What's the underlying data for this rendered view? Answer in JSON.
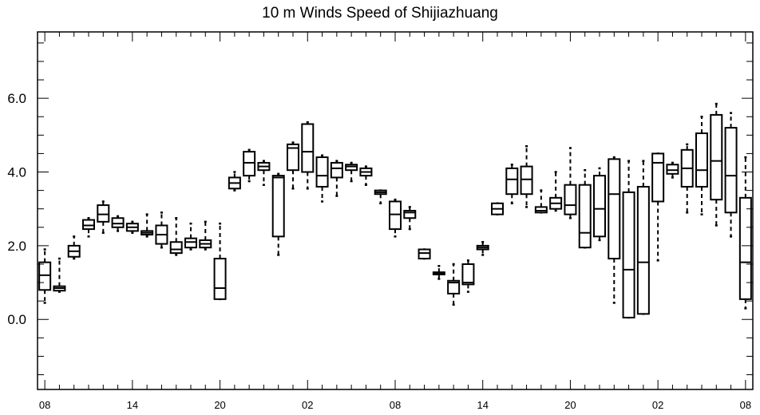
{
  "chart_data": {
    "type": "boxplot",
    "title": "10 m Winds Speed of Shijiazhuang",
    "xlabel": "",
    "ylabel": "",
    "ylim": [
      -1.9,
      7.8
    ],
    "xlim": [
      0.5,
      49.5
    ],
    "yticks": [
      0.0,
      2.0,
      4.0,
      6.0
    ],
    "ytick_labels": [
      "0.0",
      "2.0",
      "4.0",
      "6.0"
    ],
    "y_minor_step": 0.5,
    "xticks": [
      1,
      7,
      13,
      19,
      25,
      31,
      37,
      43,
      49
    ],
    "xtick_labels": [
      "08",
      "14",
      "20",
      "02",
      "08",
      "14",
      "20",
      "02",
      "08"
    ],
    "x_minor_ticks": [
      2,
      3,
      4,
      5,
      6,
      8,
      9,
      10,
      11,
      12,
      14,
      15,
      16,
      17,
      18,
      20,
      21,
      22,
      23,
      24,
      26,
      27,
      28,
      29,
      30,
      32,
      33,
      34,
      35,
      36,
      38,
      39,
      40,
      41,
      42,
      44,
      45,
      46,
      47,
      48
    ],
    "grid": false,
    "boxes": [
      {
        "x": 1,
        "whislo": 0.45,
        "q1": 0.8,
        "med": 1.2,
        "q3": 1.55,
        "whishi": 1.9
      },
      {
        "x": 2,
        "whislo": 0.75,
        "q1": 0.78,
        "med": 0.85,
        "q3": 0.9,
        "whishi": 1.65
      },
      {
        "x": 3,
        "whislo": 1.65,
        "q1": 1.7,
        "med": 1.85,
        "q3": 2.0,
        "whishi": 2.25
      },
      {
        "x": 4,
        "whislo": 2.25,
        "q1": 2.45,
        "med": 2.55,
        "q3": 2.7,
        "whishi": 2.75
      },
      {
        "x": 5,
        "whislo": 2.35,
        "q1": 2.65,
        "med": 2.85,
        "q3": 3.1,
        "whishi": 3.2
      },
      {
        "x": 6,
        "whislo": 2.4,
        "q1": 2.5,
        "med": 2.6,
        "q3": 2.75,
        "whishi": 2.8
      },
      {
        "x": 7,
        "whislo": 2.35,
        "q1": 2.4,
        "med": 2.5,
        "q3": 2.6,
        "whishi": 2.65
      },
      {
        "x": 8,
        "whislo": 2.25,
        "q1": 2.3,
        "med": 2.35,
        "q3": 2.4,
        "whishi": 2.85
      },
      {
        "x": 9,
        "whislo": 1.95,
        "q1": 2.05,
        "med": 2.3,
        "q3": 2.55,
        "whishi": 2.9
      },
      {
        "x": 10,
        "whislo": 1.75,
        "q1": 1.8,
        "med": 1.9,
        "q3": 2.1,
        "whishi": 2.75
      },
      {
        "x": 11,
        "whislo": 1.9,
        "q1": 1.95,
        "med": 2.1,
        "q3": 2.2,
        "whishi": 2.6
      },
      {
        "x": 12,
        "whislo": 1.9,
        "q1": 1.95,
        "med": 2.05,
        "q3": 2.15,
        "whishi": 2.65
      },
      {
        "x": 13,
        "whislo": 0.55,
        "q1": 0.55,
        "med": 0.85,
        "q3": 1.65,
        "whishi": 2.6
      },
      {
        "x": 14,
        "whislo": 3.5,
        "q1": 3.55,
        "med": 3.7,
        "q3": 3.85,
        "whishi": 4.0
      },
      {
        "x": 15,
        "whislo": 3.75,
        "q1": 3.9,
        "med": 4.25,
        "q3": 4.55,
        "whishi": 4.6
      },
      {
        "x": 16,
        "whislo": 3.65,
        "q1": 4.05,
        "med": 4.15,
        "q3": 4.25,
        "whishi": 4.3
      },
      {
        "x": 17,
        "whislo": 1.75,
        "q1": 2.25,
        "med": 3.85,
        "q3": 3.9,
        "whishi": 3.95
      },
      {
        "x": 18,
        "whislo": 3.55,
        "q1": 4.05,
        "med": 4.65,
        "q3": 4.75,
        "whishi": 4.8
      },
      {
        "x": 19,
        "whislo": 3.55,
        "q1": 4.0,
        "med": 4.55,
        "q3": 5.3,
        "whishi": 5.35
      },
      {
        "x": 20,
        "whislo": 3.2,
        "q1": 3.6,
        "med": 3.9,
        "q3": 4.4,
        "whishi": 4.45
      },
      {
        "x": 21,
        "whislo": 3.35,
        "q1": 3.85,
        "med": 4.1,
        "q3": 4.25,
        "whishi": 4.3
      },
      {
        "x": 22,
        "whislo": 3.75,
        "q1": 4.05,
        "med": 4.15,
        "q3": 4.2,
        "whishi": 4.25
      },
      {
        "x": 23,
        "whislo": 3.65,
        "q1": 3.9,
        "med": 4.0,
        "q3": 4.1,
        "whishi": 4.15
      },
      {
        "x": 24,
        "whislo": 3.15,
        "q1": 3.4,
        "med": 3.45,
        "q3": 3.5,
        "whishi": 3.5
      },
      {
        "x": 25,
        "whislo": 2.25,
        "q1": 2.45,
        "med": 2.85,
        "q3": 3.2,
        "whishi": 3.25
      },
      {
        "x": 26,
        "whislo": 2.45,
        "q1": 2.75,
        "med": 2.9,
        "q3": 2.95,
        "whishi": 3.05
      },
      {
        "x": 27,
        "whislo": 1.65,
        "q1": 1.65,
        "med": 1.8,
        "q3": 1.9,
        "whishi": 1.9
      },
      {
        "x": 28,
        "whislo": 1.1,
        "q1": 1.22,
        "med": 1.25,
        "q3": 1.28,
        "whishi": 1.45
      },
      {
        "x": 29,
        "whislo": 0.4,
        "q1": 0.7,
        "med": 1.0,
        "q3": 1.05,
        "whishi": 1.5
      },
      {
        "x": 30,
        "whislo": 0.75,
        "q1": 0.95,
        "med": 1.0,
        "q3": 1.5,
        "whishi": 1.6
      },
      {
        "x": 31,
        "whislo": 1.75,
        "q1": 1.9,
        "med": 1.95,
        "q3": 2.0,
        "whishi": 2.1
      },
      {
        "x": 32,
        "whislo": 2.85,
        "q1": 2.85,
        "med": 3.0,
        "q3": 3.15,
        "whishi": 3.15
      },
      {
        "x": 33,
        "whislo": 3.15,
        "q1": 3.4,
        "med": 3.8,
        "q3": 4.1,
        "whishi": 4.2
      },
      {
        "x": 34,
        "whislo": 3.05,
        "q1": 3.4,
        "med": 3.8,
        "q3": 4.15,
        "whishi": 4.7
      },
      {
        "x": 35,
        "whislo": 2.9,
        "q1": 2.9,
        "med": 2.95,
        "q3": 3.05,
        "whishi": 3.5
      },
      {
        "x": 36,
        "whislo": 2.95,
        "q1": 3.0,
        "med": 3.15,
        "q3": 3.3,
        "whishi": 4.0
      },
      {
        "x": 37,
        "whislo": 2.75,
        "q1": 2.85,
        "med": 3.1,
        "q3": 3.65,
        "whishi": 4.65
      },
      {
        "x": 38,
        "whislo": 1.95,
        "q1": 1.95,
        "med": 2.35,
        "q3": 3.65,
        "whishi": 4.05
      },
      {
        "x": 39,
        "whislo": 2.15,
        "q1": 2.25,
        "med": 3.0,
        "q3": 3.9,
        "whishi": 4.1
      },
      {
        "x": 40,
        "whislo": 0.45,
        "q1": 1.65,
        "med": 3.4,
        "q3": 4.35,
        "whishi": 4.4
      },
      {
        "x": 41,
        "whislo": 0.05,
        "q1": 0.05,
        "med": 1.35,
        "q3": 3.45,
        "whishi": 4.3
      },
      {
        "x": 42,
        "whislo": 0.15,
        "q1": 0.15,
        "med": 1.55,
        "q3": 3.6,
        "whishi": 4.3
      },
      {
        "x": 43,
        "whislo": 1.6,
        "q1": 3.2,
        "med": 4.25,
        "q3": 4.5,
        "whishi": 4.5
      },
      {
        "x": 44,
        "whislo": 3.85,
        "q1": 3.95,
        "med": 4.05,
        "q3": 4.2,
        "whishi": 4.25
      },
      {
        "x": 45,
        "whislo": 2.9,
        "q1": 3.6,
        "med": 4.1,
        "q3": 4.6,
        "whishi": 4.75
      },
      {
        "x": 46,
        "whislo": 2.85,
        "q1": 3.6,
        "med": 4.05,
        "q3": 5.05,
        "whishi": 5.5
      },
      {
        "x": 47,
        "whislo": 2.55,
        "q1": 3.25,
        "med": 4.3,
        "q3": 5.55,
        "whishi": 5.85
      },
      {
        "x": 48,
        "whislo": 2.25,
        "q1": 2.9,
        "med": 3.9,
        "q3": 5.2,
        "whishi": 5.6
      },
      {
        "x": 49,
        "whislo": 0.3,
        "q1": 0.55,
        "med": 1.55,
        "q3": 3.3,
        "whishi": 4.4
      }
    ]
  }
}
